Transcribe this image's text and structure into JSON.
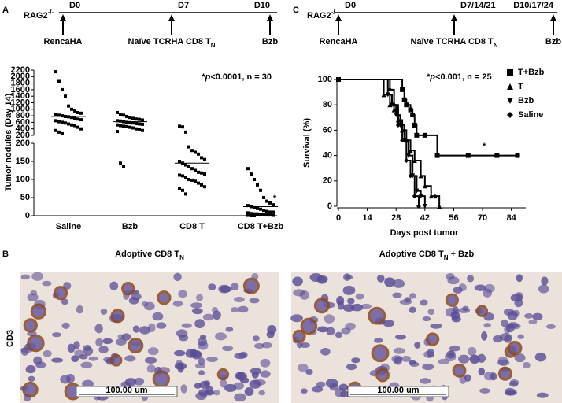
{
  "panel_labels": [
    "A",
    "B",
    "C"
  ],
  "timelines": [
    {
      "strain": [
        {
          "t": "RAG2"
        },
        {
          "t": "-/-",
          "style": "sup"
        }
      ],
      "days": [
        "D0",
        "D7",
        "D10"
      ],
      "events": [
        [
          {
            "t": "RencaHA"
          }
        ],
        [
          {
            "t": "Naïve TCRHA CD8 T"
          },
          {
            "t": "N",
            "style": "sub"
          }
        ],
        [
          {
            "t": "Bzb"
          }
        ]
      ]
    },
    {
      "strain": [
        {
          "t": "RAG2"
        },
        {
          "t": "-/-",
          "style": "sup"
        }
      ],
      "days": [
        "D0",
        "D7/14/21",
        "D10/17/24"
      ],
      "events": [
        [
          {
            "t": "RencaHA"
          }
        ],
        [
          {
            "t": "Naïve TCRHA CD8 T"
          },
          {
            "t": "N",
            "style": "sub"
          }
        ],
        [
          {
            "t": "Bzb"
          }
        ]
      ]
    }
  ],
  "chart_data": [
    {
      "type": "dot",
      "ylabel": "Tumor nodules (Day 14)",
      "annotation": [
        {
          "t": "*"
        },
        {
          "t": "p",
          "style": "italic"
        },
        {
          "t": "<0.0001, n = 30"
        }
      ],
      "star": "*",
      "categories": [
        "Saline",
        "Bzb",
        "CD8 T",
        "CD8 T+Bzb"
      ],
      "color": "#000000",
      "y_segments": [
        {
          "ylim": [
            0,
            200
          ],
          "yticks": [
            0,
            50,
            100,
            150,
            200
          ]
        },
        {
          "ylim": [
            200,
            2200
          ],
          "yticks": [
            200,
            400,
            600,
            800,
            1000,
            1200,
            1400,
            1600,
            1800,
            2000,
            2200
          ]
        }
      ],
      "values": [
        [
          2150,
          1850,
          1600,
          1400,
          1100,
          1000,
          950,
          900,
          880,
          850,
          820,
          800,
          780,
          770,
          750,
          720,
          700,
          680,
          650,
          620,
          600,
          580,
          550,
          520,
          500,
          450,
          400,
          350,
          300,
          250
        ],
        [
          900,
          850,
          820,
          780,
          750,
          720,
          700,
          690,
          670,
          650,
          640,
          620,
          600,
          590,
          580,
          560,
          550,
          540,
          520,
          500,
          480,
          470,
          450,
          430,
          400,
          380,
          350,
          320,
          145,
          135
        ],
        [
          480,
          460,
          300,
          190,
          180,
          175,
          170,
          160,
          155,
          150,
          145,
          140,
          135,
          130,
          125,
          120,
          118,
          115,
          112,
          110,
          105,
          100,
          98,
          95,
          90,
          85,
          80,
          75,
          70,
          60
        ],
        [
          130,
          115,
          100,
          85,
          70,
          50,
          40,
          35,
          30,
          28,
          25,
          22,
          20,
          18,
          15,
          12,
          10,
          10,
          8,
          6,
          5,
          5,
          4,
          3,
          2,
          2,
          1,
          1,
          0,
          0
        ]
      ],
      "means": [
        780,
        620,
        145,
        25
      ]
    },
    {
      "type": "survival",
      "xlabel": "Days post tumor",
      "ylabel": "Survival (%)",
      "annotation": [
        {
          "t": "*"
        },
        {
          "t": "p",
          "style": "italic"
        },
        {
          "t": "<0.001, n = 25"
        }
      ],
      "star": "*",
      "xlim": [
        0,
        91
      ],
      "xticks": [
        0,
        14,
        28,
        42,
        56,
        70,
        84
      ],
      "ylim": [
        0,
        100
      ],
      "yticks": [
        0,
        20,
        40,
        60,
        80,
        100
      ],
      "legend": "upper right",
      "series": [
        {
          "name": "T+Bzb",
          "marker": "square",
          "color": "#000000",
          "x": [
            0,
            31,
            32,
            33,
            35,
            36,
            37,
            38,
            42,
            48,
            63,
            77,
            87
          ],
          "values": [
            100,
            92,
            84,
            80,
            76,
            72,
            64,
            56,
            56,
            40,
            40,
            40,
            40
          ]
        },
        {
          "name": "T",
          "marker": "triangle-up",
          "color": "#000000",
          "x": [
            0,
            22,
            25,
            27,
            29,
            31,
            33,
            35,
            37,
            40,
            42,
            45,
            47,
            49
          ],
          "values": [
            100,
            88,
            80,
            76,
            68,
            60,
            52,
            44,
            36,
            24,
            16,
            8,
            8,
            0
          ]
        },
        {
          "name": "Bzb",
          "marker": "triangle-down",
          "color": "#000000",
          "x": [
            0,
            24,
            26,
            28,
            30,
            32,
            34,
            36,
            38,
            40,
            42
          ],
          "values": [
            100,
            88,
            80,
            72,
            64,
            52,
            40,
            24,
            12,
            8,
            0
          ]
        },
        {
          "name": "Saline",
          "marker": "diamond",
          "color": "#000000",
          "x": [
            0,
            25,
            27,
            29,
            31,
            33,
            35,
            37,
            39
          ],
          "values": [
            100,
            92,
            80,
            64,
            52,
            36,
            24,
            8,
            0
          ]
        }
      ]
    }
  ],
  "images": {
    "row_label": "CD3",
    "titles": [
      [
        {
          "t": "Adoptive CD8 T"
        },
        {
          "t": "N",
          "style": "sub"
        }
      ],
      [
        {
          "t": "Adoptive CD8 T"
        },
        {
          "t": "N",
          "style": "sub"
        },
        {
          "t": " + Bzb"
        }
      ]
    ],
    "scale_bars": [
      "100.00 um",
      "100.00 um"
    ]
  }
}
